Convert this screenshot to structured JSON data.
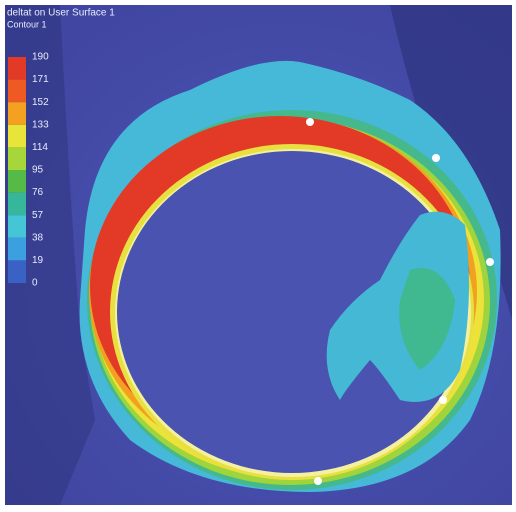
{
  "legend": {
    "title": "deltat on User Surface 1",
    "subtitle": "Contour 1",
    "labels": [
      190,
      171,
      152,
      133,
      114,
      95,
      76,
      57,
      38,
      19,
      0
    ],
    "colors": [
      "#e23a26",
      "#ee5a22",
      "#f4a020",
      "#e9e43a",
      "#a6d63a",
      "#55bb46",
      "#36b69a",
      "#44c6d6",
      "#3b9fe0",
      "#3a62c4"
    ]
  }
}
